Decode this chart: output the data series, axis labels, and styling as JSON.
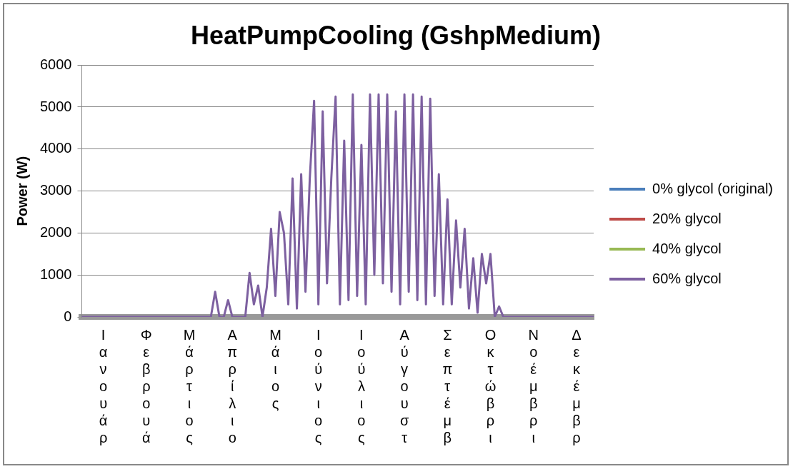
{
  "chart_data": {
    "type": "line",
    "title": "HeatPumpCooling (GshpMedium)",
    "ylabel": "Power (W)",
    "categories": [
      null,
      null,
      null,
      null,
      null,
      "Ιανουάρ",
      null,
      null,
      null,
      null,
      null,
      null,
      null,
      null,
      null,
      "Φεβρουά",
      null,
      null,
      null,
      null,
      null,
      null,
      null,
      null,
      null,
      "Μάρτιος",
      null,
      null,
      null,
      null,
      null,
      null,
      null,
      null,
      null,
      "Απρίλιο",
      null,
      null,
      null,
      null,
      null,
      null,
      null,
      null,
      null,
      "Μάιος",
      null,
      null,
      null,
      null,
      null,
      null,
      null,
      null,
      null,
      "Ιούνιος",
      null,
      null,
      null,
      null,
      null,
      null,
      null,
      null,
      null,
      "Ιούλιος",
      null,
      null,
      null,
      null,
      null,
      null,
      null,
      null,
      null,
      "Αύγουστ",
      null,
      null,
      null,
      null,
      null,
      null,
      null,
      null,
      null,
      "Σεπτέμβ",
      null,
      null,
      null,
      null,
      null,
      null,
      null,
      null,
      null,
      "Οκτώβρι",
      null,
      null,
      null,
      null,
      null,
      null,
      null,
      null,
      null,
      "Νοέμβρι",
      null,
      null,
      null,
      null,
      null,
      null,
      null,
      null,
      null,
      "Δεκέμβρ",
      null,
      null,
      null,
      null
    ],
    "series": [
      {
        "name": "0% glycol (original)",
        "color": "#4a7ebb",
        "values": [
          null,
          null,
          null,
          null,
          null,
          null,
          null,
          null,
          null,
          null,
          null,
          null,
          null,
          null,
          null,
          null,
          null,
          null,
          null,
          null,
          null,
          null,
          null,
          null,
          null,
          null,
          null,
          null,
          null,
          null,
          null,
          null,
          null,
          null,
          null,
          null,
          null,
          null,
          null,
          null,
          null,
          null,
          null,
          null,
          null,
          null,
          null,
          null,
          null,
          null,
          null,
          null,
          null,
          null,
          null,
          null,
          null,
          null,
          null,
          null,
          null,
          null,
          null,
          null,
          null,
          null,
          null,
          null,
          null,
          null,
          null,
          null,
          null,
          null,
          null,
          null,
          null,
          null,
          null,
          null,
          null,
          null,
          null,
          null,
          null,
          null,
          null,
          null,
          null,
          null,
          null,
          null,
          null,
          null,
          null,
          null,
          null,
          null,
          null,
          null,
          null,
          null,
          null,
          null,
          null,
          null,
          null,
          null,
          null,
          null,
          null,
          null,
          null,
          null,
          null,
          null,
          null,
          null,
          null,
          null
        ]
      },
      {
        "name": "20% glycol",
        "color": "#be4b48",
        "values": [
          null,
          null,
          null,
          null,
          null,
          null,
          null,
          null,
          null,
          null,
          null,
          null,
          null,
          null,
          null,
          null,
          null,
          null,
          null,
          null,
          null,
          null,
          null,
          null,
          null,
          null,
          null,
          null,
          null,
          null,
          null,
          null,
          null,
          null,
          null,
          null,
          null,
          null,
          null,
          null,
          null,
          null,
          null,
          null,
          null,
          null,
          null,
          null,
          null,
          null,
          null,
          null,
          null,
          null,
          null,
          null,
          null,
          null,
          null,
          null,
          null,
          null,
          null,
          null,
          null,
          null,
          null,
          null,
          null,
          null,
          null,
          null,
          null,
          null,
          null,
          null,
          null,
          null,
          null,
          null,
          null,
          null,
          null,
          null,
          null,
          null,
          null,
          null,
          null,
          null,
          null,
          null,
          null,
          null,
          null,
          null,
          null,
          null,
          null,
          null,
          null,
          null,
          null,
          null,
          null,
          null,
          null,
          null,
          null,
          null,
          null,
          null,
          null,
          null,
          null,
          null,
          null,
          null,
          null,
          null
        ]
      },
      {
        "name": "40% glycol",
        "color": "#98b954",
        "values": [
          null,
          null,
          null,
          null,
          null,
          null,
          null,
          null,
          null,
          null,
          null,
          null,
          null,
          null,
          null,
          null,
          null,
          null,
          null,
          null,
          null,
          null,
          null,
          null,
          null,
          null,
          null,
          null,
          null,
          null,
          null,
          null,
          null,
          null,
          null,
          null,
          null,
          null,
          null,
          null,
          null,
          null,
          null,
          null,
          null,
          null,
          null,
          null,
          null,
          null,
          null,
          null,
          null,
          null,
          null,
          null,
          null,
          null,
          null,
          null,
          null,
          null,
          null,
          null,
          null,
          null,
          null,
          null,
          null,
          null,
          null,
          null,
          null,
          null,
          null,
          null,
          null,
          null,
          null,
          null,
          null,
          null,
          null,
          null,
          null,
          null,
          null,
          null,
          null,
          null,
          null,
          null,
          null,
          null,
          null,
          null,
          null,
          null,
          null,
          null,
          null,
          null,
          null,
          null,
          null,
          null,
          null,
          null,
          null,
          null,
          null,
          null,
          null,
          null,
          null,
          null,
          null,
          null,
          null,
          null
        ]
      },
      {
        "name": "60% glycol",
        "color": "#7d60a0",
        "values": [
          0,
          0,
          0,
          0,
          0,
          0,
          0,
          0,
          0,
          0,
          0,
          0,
          0,
          0,
          0,
          0,
          0,
          0,
          0,
          0,
          0,
          0,
          0,
          0,
          0,
          0,
          0,
          0,
          0,
          0,
          0,
          600,
          0,
          0,
          400,
          0,
          0,
          0,
          0,
          1050,
          300,
          750,
          0,
          700,
          2100,
          500,
          2500,
          2000,
          300,
          3300,
          200,
          3400,
          600,
          3300,
          5150,
          300,
          4900,
          800,
          3300,
          5250,
          300,
          4200,
          400,
          5300,
          500,
          4100,
          300,
          5300,
          1000,
          5300,
          800,
          5300,
          600,
          4900,
          300,
          5300,
          600,
          5300,
          400,
          5250,
          300,
          5200,
          500,
          3400,
          300,
          2800,
          300,
          2300,
          700,
          2100,
          200,
          1400,
          100,
          1500,
          800,
          1500,
          0,
          250,
          0,
          0,
          0,
          0,
          0,
          0,
          0,
          0,
          0,
          0,
          0,
          0,
          0,
          0,
          0,
          0,
          0,
          0,
          0,
          0,
          0,
          0
        ]
      }
    ],
    "ylim": [
      0,
      6000
    ],
    "yticks": [
      0,
      1000,
      2000,
      3000,
      4000,
      5000,
      6000
    ],
    "grid": "y",
    "legend": "right",
    "marker": "none",
    "line_style": "solid"
  }
}
